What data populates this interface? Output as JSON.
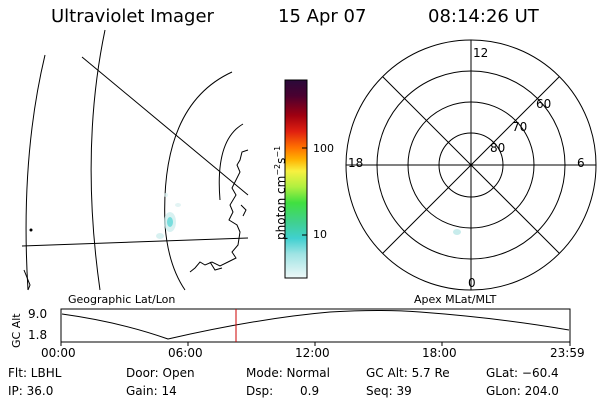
{
  "header": {
    "title": "Ultraviolet Imager",
    "date": "15 Apr 07",
    "time": "08:14:26 UT"
  },
  "colorbar": {
    "label": "photon cm",
    "label_exp1": "−2",
    "label_mid": "s",
    "label_exp2": "−1",
    "ticks": [
      "100",
      "10"
    ]
  },
  "geo_panel": {
    "caption": "Geographic Lat/Lon"
  },
  "polar_panel": {
    "caption": "Apex MLat/MLT",
    "mlt_labels": {
      "top": "12",
      "right": "6",
      "left": "18",
      "bottom": "0"
    },
    "lat_labels": [
      "60",
      "70",
      "80"
    ]
  },
  "altitude_plot": {
    "ylabel": "GC Alt",
    "yticks": [
      "9.0",
      "1.8"
    ],
    "xticks": [
      "00:00",
      "06:00",
      "12:00",
      "18:00",
      "23:59"
    ],
    "current_time_marker": "08:14"
  },
  "info": {
    "filter": "Flt: LBHL",
    "door": "Door: Open",
    "mode": "Mode: Normal",
    "gc_alt": "GC Alt: 5.7 Re",
    "glat": "GLat: −60.4",
    "ip": "IP: 36.0",
    "gain": "Gain: 14",
    "dsp_label": "Dsp:",
    "dsp_value": "0.9",
    "seq": "Seq: 39",
    "glon": "GLon: 204.0"
  },
  "colors": {
    "colorbar": [
      "#2a0a3a",
      "#4a0030",
      "#800018",
      "#c00000",
      "#e02010",
      "#ff6000",
      "#ffa000",
      "#ffd000",
      "#f0f040",
      "#a0f040",
      "#40e040",
      "#40d080",
      "#40d0d0",
      "#90e0e0",
      "#c8ecec",
      "#e8f6f6"
    ],
    "marker": "#cc0000"
  }
}
